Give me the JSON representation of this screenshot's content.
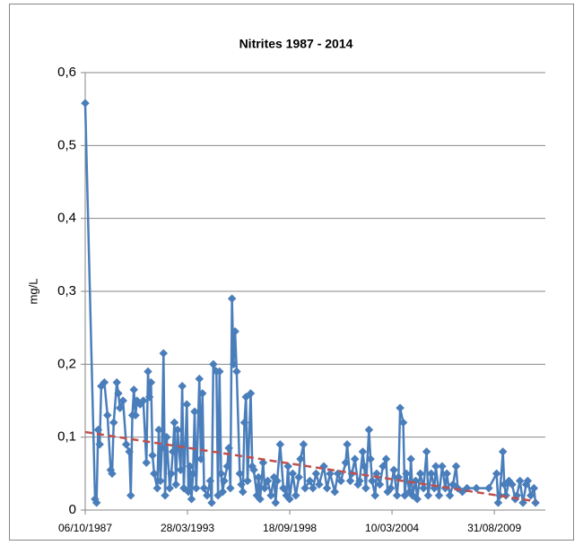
{
  "chart_data": {
    "type": "line",
    "title": "Nitrites 1987 - 2014",
    "y_label": "mg/L",
    "x": [
      "06/10/1987",
      "15/04/1988",
      "15/05/1988",
      "15/06/1988",
      "15/07/1988",
      "15/08/1988",
      "15/10/1988",
      "15/12/1988",
      "15/02/1989",
      "15/03/1989",
      "15/04/1989",
      "15/06/1989",
      "15/07/1989",
      "15/08/1989",
      "15/10/1989",
      "15/12/1989",
      "15/02/1990",
      "15/03/1990",
      "15/04/1990",
      "15/05/1990",
      "15/06/1990",
      "15/07/1990",
      "15/09/1990",
      "15/11/1990",
      "15/01/1991",
      "15/02/1991",
      "15/03/1991",
      "15/04/1991",
      "15/05/1991",
      "15/06/1991",
      "15/08/1991",
      "15/09/1991",
      "15/10/1991",
      "15/11/1991",
      "15/12/1991",
      "15/01/1992",
      "15/02/1992",
      "15/04/1992",
      "15/05/1992",
      "15/06/1992",
      "15/07/1992",
      "15/08/1992",
      "15/09/1992",
      "15/11/1992",
      "15/12/1992",
      "15/01/1993",
      "15/03/1993",
      "15/04/1993",
      "15/05/1993",
      "15/06/1993",
      "15/07/1993",
      "15/08/1993",
      "15/09/1993",
      "15/11/1993",
      "15/12/1993",
      "15/01/1994",
      "15/02/1994",
      "15/04/1994",
      "15/06/1994",
      "15/07/1994",
      "15/08/1994",
      "15/10/1994",
      "15/11/1994",
      "15/12/1994",
      "15/01/1995",
      "15/02/1995",
      "15/03/1995",
      "15/05/1995",
      "15/06/1995",
      "15/07/1995",
      "15/08/1995",
      "15/09/1995",
      "15/10/1995",
      "15/11/1995",
      "15/01/1996",
      "15/02/1996",
      "15/03/1996",
      "15/04/1996",
      "15/05/1996",
      "15/06/1996",
      "15/08/1996",
      "15/09/1996",
      "15/10/1996",
      "15/12/1996",
      "15/01/1997",
      "15/02/1997",
      "15/04/1997",
      "15/05/1997",
      "15/07/1997",
      "15/09/1997",
      "15/11/1997",
      "15/12/1997",
      "15/01/1998",
      "15/03/1998",
      "15/05/1998",
      "15/07/1998",
      "15/08/1998",
      "15/09/1998",
      "15/11/1998",
      "15/01/1999",
      "15/03/1999",
      "15/04/1999",
      "15/06/1999",
      "15/07/1999",
      "15/10/1999",
      "15/12/1999",
      "15/02/2000",
      "15/04/2000",
      "15/07/2000",
      "15/09/2000",
      "15/11/2000",
      "15/02/2001",
      "15/04/2001",
      "15/06/2001",
      "15/09/2001",
      "15/10/2001",
      "15/12/2001",
      "15/01/2002",
      "15/03/2002",
      "15/05/2002",
      "15/06/2002",
      "15/08/2002",
      "15/09/2002",
      "15/10/2002",
      "15/12/2002",
      "15/01/2003",
      "15/02/2003",
      "15/04/2003",
      "15/05/2003",
      "15/07/2003",
      "15/09/2003",
      "15/11/2003",
      "15/12/2003",
      "15/02/2004",
      "15/04/2004",
      "15/06/2004",
      "15/07/2004",
      "15/08/2004",
      "15/10/2004",
      "15/11/2004",
      "15/12/2004",
      "15/02/2005",
      "15/03/2005",
      "15/04/2005",
      "15/06/2005",
      "15/07/2005",
      "15/09/2005",
      "15/11/2005",
      "15/01/2006",
      "15/02/2006",
      "15/04/2006",
      "15/06/2006",
      "15/07/2006",
      "15/09/2006",
      "15/11/2006",
      "15/01/2007",
      "15/02/2007",
      "15/04/2007",
      "15/06/2007",
      "15/08/2007",
      "15/09/2007",
      "15/12/2007",
      "15/03/2008",
      "15/09/2008",
      "15/05/2009",
      "15/10/2009",
      "15/11/2009",
      "15/12/2009",
      "15/02/2010",
      "15/03/2010",
      "15/04/2010",
      "15/06/2010",
      "15/08/2010",
      "15/10/2010",
      "15/11/2010",
      "15/01/2011",
      "15/03/2011",
      "15/05/2011",
      "15/06/2011",
      "15/08/2011",
      "15/10/2011",
      "15/11/2011"
    ],
    "series": [
      {
        "color": "#4a7ebb",
        "values": [
          0.558,
          0.015,
          0.01,
          0.11,
          0.09,
          0.17,
          0.175,
          0.13,
          0.055,
          0.05,
          0.12,
          0.175,
          0.16,
          0.14,
          0.15,
          0.09,
          0.08,
          0.02,
          0.13,
          0.165,
          0.13,
          0.15,
          0.145,
          0.15,
          0.065,
          0.19,
          0.155,
          0.175,
          0.075,
          0.05,
          0.03,
          0.11,
          0.04,
          0.085,
          0.215,
          0.02,
          0.1,
          0.03,
          0.05,
          0.08,
          0.12,
          0.035,
          0.11,
          0.055,
          0.17,
          0.03,
          0.145,
          0.025,
          0.06,
          0.015,
          0.05,
          0.135,
          0.03,
          0.18,
          0.07,
          0.16,
          0.03,
          0.02,
          0.04,
          0.01,
          0.2,
          0.19,
          0.02,
          0.19,
          0.05,
          0.025,
          0.04,
          0.06,
          0.085,
          0.03,
          0.29,
          0.2,
          0.245,
          0.19,
          0.05,
          0.035,
          0.025,
          0.12,
          0.155,
          0.04,
          0.16,
          0.06,
          0.055,
          0.02,
          0.045,
          0.015,
          0.065,
          0.03,
          0.04,
          0.02,
          0.045,
          0.01,
          0.04,
          0.09,
          0.03,
          0.02,
          0.06,
          0.015,
          0.05,
          0.02,
          0.045,
          0.07,
          0.09,
          0.03,
          0.04,
          0.03,
          0.05,
          0.035,
          0.06,
          0.03,
          0.05,
          0.025,
          0.05,
          0.04,
          0.065,
          0.09,
          0.04,
          0.05,
          0.07,
          0.035,
          0.04,
          0.08,
          0.06,
          0.03,
          0.11,
          0.07,
          0.04,
          0.02,
          0.05,
          0.035,
          0.06,
          0.07,
          0.025,
          0.03,
          0.055,
          0.02,
          0.045,
          0.14,
          0.12,
          0.02,
          0.05,
          0.025,
          0.07,
          0.02,
          0.04,
          0.015,
          0.05,
          0.03,
          0.08,
          0.02,
          0.05,
          0.03,
          0.06,
          0.02,
          0.06,
          0.03,
          0.05,
          0.02,
          0.035,
          0.06,
          0.03,
          0.025,
          0.03,
          0.03,
          0.03,
          0.05,
          0.01,
          0.02,
          0.08,
          0.035,
          0.02,
          0.04,
          0.035,
          0.015,
          0.02,
          0.04,
          0.01,
          0.035,
          0.04,
          0.02,
          0.03,
          0.01
        ]
      }
    ],
    "trendline": {
      "color": "#c0504d",
      "x": [
        "06/10/1987",
        "15/11/2011"
      ],
      "values": [
        0.107,
        0.012
      ]
    },
    "xlim": [
      "06/10/1987",
      "25/05/2012"
    ],
    "xticks": [
      "06/10/1987",
      "28/03/1993",
      "18/09/1998",
      "10/03/2004",
      "31/08/2009"
    ],
    "ylim": [
      0,
      0.6
    ],
    "yticks": [
      0,
      {
        "value": 0.1,
        "label": "0,1"
      },
      {
        "value": 0.2,
        "label": "0,2"
      },
      {
        "value": 0.3,
        "label": "0,3"
      },
      {
        "value": 0.4,
        "label": "0,4"
      },
      {
        "value": 0.5,
        "label": "0,5"
      },
      {
        "value": 0.6,
        "label": "0,6"
      }
    ],
    "grid": true
  }
}
